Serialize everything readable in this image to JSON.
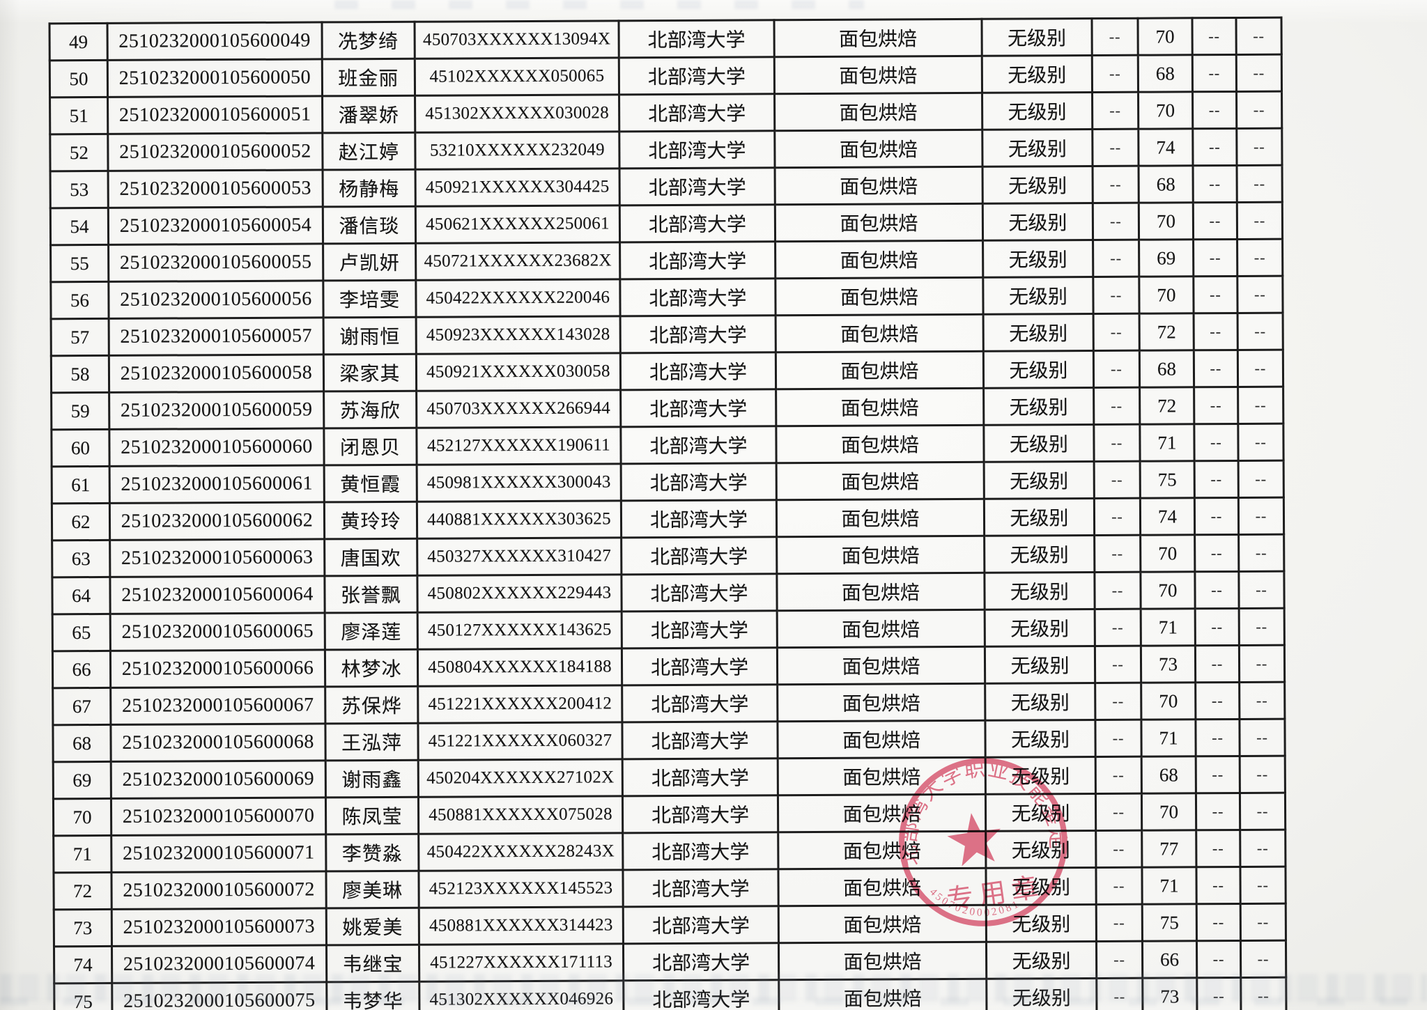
{
  "table": {
    "common": {
      "school": "北部湾大学",
      "subject": "面包烘焙",
      "level": "无级别",
      "dash": "--"
    },
    "rows": [
      {
        "no": "49",
        "exam_no": "2510232000105600049",
        "name": "冼梦绮",
        "id_card": "450703XXXXXX13094X",
        "score": "70"
      },
      {
        "no": "50",
        "exam_no": "2510232000105600050",
        "name": "班金丽",
        "id_card": "45102XXXXXX050065",
        "score": "68"
      },
      {
        "no": "51",
        "exam_no": "2510232000105600051",
        "name": "潘翠娇",
        "id_card": "451302XXXXXX030028",
        "score": "70"
      },
      {
        "no": "52",
        "exam_no": "2510232000105600052",
        "name": "赵江婷",
        "id_card": "53210XXXXXX232049",
        "score": "74"
      },
      {
        "no": "53",
        "exam_no": "2510232000105600053",
        "name": "杨静梅",
        "id_card": "450921XXXXXX304425",
        "score": "68"
      },
      {
        "no": "54",
        "exam_no": "2510232000105600054",
        "name": "潘信琰",
        "id_card": "450621XXXXXX250061",
        "score": "70"
      },
      {
        "no": "55",
        "exam_no": "2510232000105600055",
        "name": "卢凯妍",
        "id_card": "450721XXXXXX23682X",
        "score": "69"
      },
      {
        "no": "56",
        "exam_no": "2510232000105600056",
        "name": "李培雯",
        "id_card": "450422XXXXXX220046",
        "score": "70"
      },
      {
        "no": "57",
        "exam_no": "2510232000105600057",
        "name": "谢雨恒",
        "id_card": "450923XXXXXX143028",
        "score": "72"
      },
      {
        "no": "58",
        "exam_no": "2510232000105600058",
        "name": "梁家其",
        "id_card": "450921XXXXXX030058",
        "score": "68"
      },
      {
        "no": "59",
        "exam_no": "2510232000105600059",
        "name": "苏海欣",
        "id_card": "450703XXXXXX266944",
        "score": "72"
      },
      {
        "no": "60",
        "exam_no": "2510232000105600060",
        "name": "闭恩贝",
        "id_card": "452127XXXXXX190611",
        "score": "71"
      },
      {
        "no": "61",
        "exam_no": "2510232000105600061",
        "name": "黄恒霞",
        "id_card": "450981XXXXXX300043",
        "score": "75"
      },
      {
        "no": "62",
        "exam_no": "2510232000105600062",
        "name": "黄玲玲",
        "id_card": "440881XXXXXX303625",
        "score": "74"
      },
      {
        "no": "63",
        "exam_no": "2510232000105600063",
        "name": "唐国欢",
        "id_card": "450327XXXXXX310427",
        "score": "70"
      },
      {
        "no": "64",
        "exam_no": "2510232000105600064",
        "name": "张誉飘",
        "id_card": "450802XXXXXX229443",
        "score": "70"
      },
      {
        "no": "65",
        "exam_no": "2510232000105600065",
        "name": "廖泽莲",
        "id_card": "450127XXXXXX143625",
        "score": "71"
      },
      {
        "no": "66",
        "exam_no": "2510232000105600066",
        "name": "林梦冰",
        "id_card": "450804XXXXXX184188",
        "score": "73"
      },
      {
        "no": "67",
        "exam_no": "2510232000105600067",
        "name": "苏保烨",
        "id_card": "451221XXXXXX200412",
        "score": "70"
      },
      {
        "no": "68",
        "exam_no": "2510232000105600068",
        "name": "王泓萍",
        "id_card": "451221XXXXXX060327",
        "score": "71"
      },
      {
        "no": "69",
        "exam_no": "2510232000105600069",
        "name": "谢雨鑫",
        "id_card": "450204XXXXXX27102X",
        "score": "68"
      },
      {
        "no": "70",
        "exam_no": "2510232000105600070",
        "name": "陈凤莹",
        "id_card": "450881XXXXXX075028",
        "score": "70"
      },
      {
        "no": "71",
        "exam_no": "2510232000105600071",
        "name": "李赞淼",
        "id_card": "450422XXXXXX28243X",
        "score": "77"
      },
      {
        "no": "72",
        "exam_no": "2510232000105600072",
        "name": "廖美琳",
        "id_card": "452123XXXXXX145523",
        "score": "71"
      },
      {
        "no": "73",
        "exam_no": "2510232000105600073",
        "name": "姚爱美",
        "id_card": "450881XXXXXX314423",
        "score": "75"
      },
      {
        "no": "74",
        "exam_no": "2510232000105600074",
        "name": "韦继宝",
        "id_card": "451227XXXXXX171113",
        "score": "66"
      },
      {
        "no": "75",
        "exam_no": "2510232000105600075",
        "name": "韦梦华",
        "id_card": "451302XXXXXX046926",
        "score": "73"
      }
    ]
  },
  "stamp": {
    "arc_text": "北部湾大学职业技能鉴定",
    "center_text": "专用章",
    "serial": "4507020002081",
    "star_icon": "★",
    "color": "#dd5673"
  }
}
